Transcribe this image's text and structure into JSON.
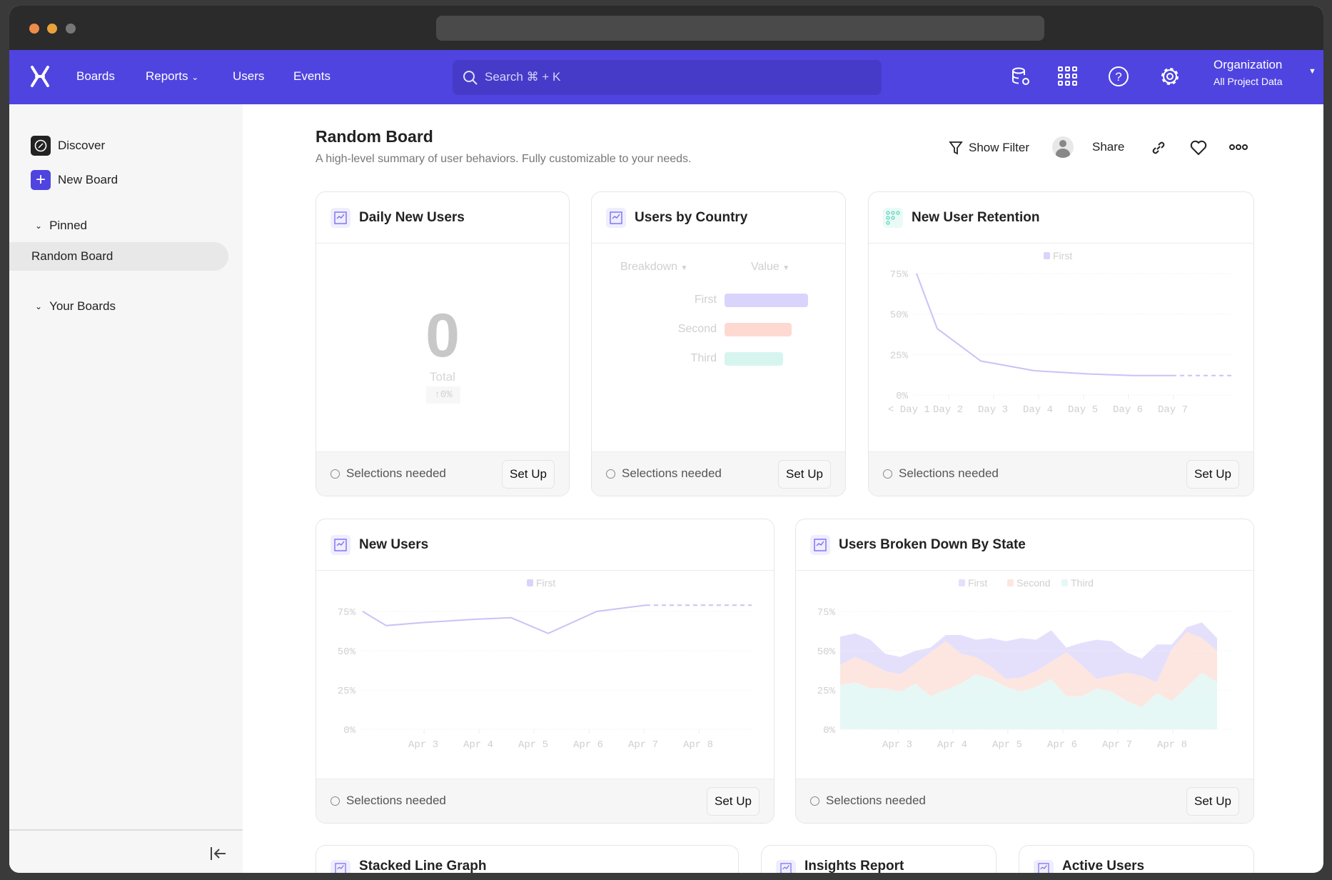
{
  "nav": {
    "links": [
      "Boards",
      "Reports",
      "Users",
      "Events"
    ],
    "search_placeholder": "Search ⌘ + K",
    "icons": [
      "database-settings-icon",
      "apps-grid-icon",
      "help-icon",
      "settings-icon"
    ],
    "org_title": "Organization",
    "org_subtitle": "All Project Data",
    "brand_color": "#4f44e0"
  },
  "sidebar": {
    "discover": "Discover",
    "new_board": "New Board",
    "pinned": "Pinned",
    "pinned_items": [
      "Random Board"
    ],
    "your_boards": "Your Boards"
  },
  "board": {
    "title": "Random Board",
    "subtitle": "A high-level summary of user behaviors. Fully customizable to your needs.",
    "show_filter": "Show Filter",
    "share": "Share"
  },
  "footer": {
    "status": "Selections needed",
    "setup": "Set Up"
  },
  "widgets": {
    "daily": {
      "title": "Daily New Users",
      "value": "0",
      "label": "Total",
      "change": "↑0%"
    },
    "country": {
      "title": "Users by Country",
      "breakdown": "Breakdown",
      "value": "Value",
      "bars": [
        {
          "label": "First",
          "value": 100,
          "color": "#d9d4fb"
        },
        {
          "label": "Second",
          "value": 80,
          "color": "#fdd9d2"
        },
        {
          "label": "Third",
          "value": 70,
          "color": "#d7f5ef"
        }
      ]
    },
    "retention": {
      "title": "New User Retention",
      "legend": "First",
      "y_ticks": [
        "0%",
        "25%",
        "50%",
        "75%"
      ],
      "x_labels": [
        "< Day 1",
        "Day 2",
        "Day 3",
        "Day 4",
        "Day 5",
        "Day 6",
        "Day 7"
      ],
      "values": [
        75,
        41,
        21,
        15,
        13,
        12,
        12,
        12
      ],
      "ylim": [
        0,
        75
      ]
    },
    "new_users": {
      "title": "New Users",
      "legend": "First",
      "y_ticks": [
        "0%",
        "25%",
        "50%",
        "75%"
      ],
      "x_labels": [
        "Apr 3",
        "Apr 4",
        "Apr 5",
        "Apr 6",
        "Apr 7",
        "Apr 8"
      ],
      "values": [
        75,
        66,
        68,
        70,
        71,
        61,
        75,
        79,
        79
      ],
      "ylim": [
        0,
        75
      ]
    },
    "by_state": {
      "title": "Users Broken Down By State",
      "y_ticks": [
        "0%",
        "25%",
        "50%",
        "75%"
      ],
      "x_labels": [
        "Apr 3",
        "Apr 4",
        "Apr 5",
        "Apr 6",
        "Apr 7",
        "Apr 8"
      ],
      "series": [
        {
          "name": "First",
          "color": "#e4e0fc",
          "values": [
            18,
            15,
            15,
            11,
            11,
            8,
            3,
            4,
            12,
            11,
            18,
            24,
            25,
            20,
            20,
            3,
            14,
            25,
            22,
            13,
            11,
            24,
            3,
            3,
            10,
            8
          ]
        },
        {
          "name": "Second",
          "color": "#fde6e0",
          "values": [
            13,
            16,
            16,
            11,
            11,
            13,
            28,
            31,
            19,
            11,
            8,
            5,
            9,
            10,
            11,
            28,
            20,
            6,
            10,
            18,
            20,
            7,
            33,
            35,
            22,
            20
          ]
        },
        {
          "name": "Third",
          "color": "#e6f8f5",
          "values": [
            28,
            30,
            26,
            26,
            24,
            29,
            21,
            25,
            29,
            35,
            32,
            27,
            24,
            27,
            32,
            21,
            21,
            26,
            24,
            18,
            14,
            23,
            18,
            27,
            36,
            30
          ]
        }
      ],
      "ylim": [
        0,
        75
      ]
    },
    "row3": [
      "Stacked Line Graph",
      "Insights Report",
      "Active Users"
    ]
  },
  "accent_line": "#c9c2f7"
}
